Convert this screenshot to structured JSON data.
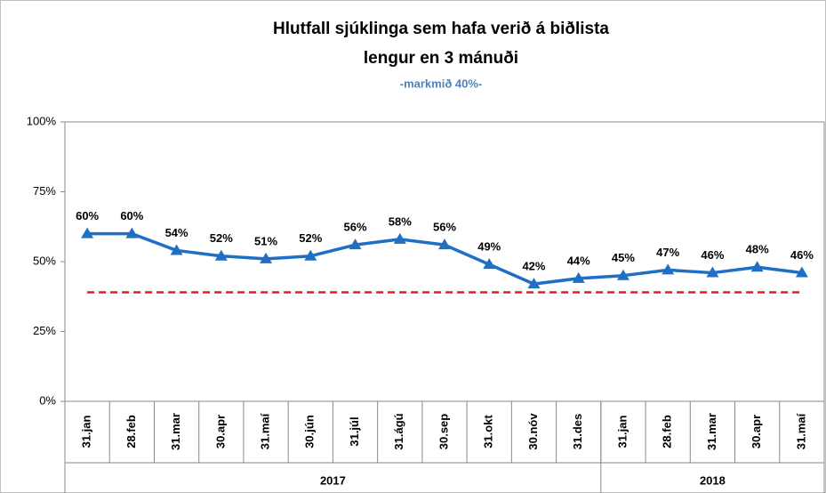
{
  "chart_data": {
    "type": "line",
    "title": [
      "Hlutfall sjúklinga sem hafa verið á biðlista",
      "lengur en 3 mánuði"
    ],
    "subtitle": "-markmið 40%-",
    "categories": [
      "31.jan",
      "28.feb",
      "31.mar",
      "30.apr",
      "31.maí",
      "30.jún",
      "31.júl",
      "31.ágú",
      "30.sep",
      "31.okt",
      "30.nóv",
      "31.des",
      "31.jan",
      "28.feb",
      "31.mar",
      "30.apr",
      "31.maí"
    ],
    "groups": [
      {
        "label": "2017",
        "span": 12
      },
      {
        "label": "2018",
        "span": 5
      }
    ],
    "series": [
      {
        "color": "#1f6fc5",
        "style": "solid",
        "marker": "triangle",
        "values": [
          60,
          60,
          54,
          52,
          51,
          52,
          56,
          58,
          56,
          49,
          42,
          44,
          45,
          47,
          46,
          48,
          46
        ],
        "value_labels": [
          "60%",
          "60%",
          "54%",
          "52%",
          "51%",
          "52%",
          "56%",
          "58%",
          "56%",
          "49%",
          "42%",
          "44%",
          "45%",
          "47%",
          "46%",
          "48%",
          "46%"
        ]
      },
      {
        "color": "#e31b1b",
        "style": "dashed",
        "values": [
          39,
          39,
          39,
          39,
          39,
          39,
          39,
          39,
          39,
          39,
          39,
          39,
          39,
          39,
          39,
          39,
          39
        ]
      }
    ],
    "ylim": [
      0,
      100
    ],
    "yticks": [
      {
        "value": 0,
        "label": "0%"
      },
      {
        "value": 25,
        "label": "25%"
      },
      {
        "value": 50,
        "label": "50%"
      },
      {
        "value": 75,
        "label": "75%"
      },
      {
        "value": 100,
        "label": "100%"
      }
    ],
    "grid": false
  }
}
